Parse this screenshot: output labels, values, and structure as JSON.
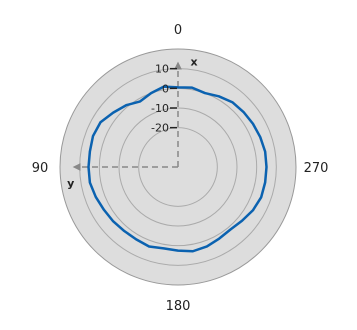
{
  "chart_data": {
    "type": "line",
    "coordinate_system": "polar",
    "title": "",
    "angle_direction": "counterclockwise",
    "zero_angle": "top",
    "angle_ticks": [
      0,
      90,
      180,
      270
    ],
    "angle_tick_labels": [
      "0",
      "90",
      "180",
      "270"
    ],
    "radial_range": [
      -40,
      20
    ],
    "radial_ticks": [
      -20,
      -10,
      0,
      10
    ],
    "radial_tick_labels": [
      "-20",
      "-10",
      "0",
      "10"
    ],
    "grid": true,
    "axis_arrows": [
      {
        "label": "x",
        "angle": 0
      },
      {
        "label": "y",
        "angle": 90
      }
    ],
    "series": [
      {
        "color": "#0b62b0",
        "angles": [
          0,
          10,
          20,
          30,
          40,
          50,
          60,
          70,
          80,
          90,
          100,
          110,
          120,
          130,
          140,
          150,
          160,
          170,
          180,
          190,
          200,
          210,
          220,
          230,
          240,
          250,
          260,
          270,
          280,
          290,
          300,
          310,
          320,
          330,
          340,
          350
        ],
        "values": [
          0.5,
          1.5,
          0.0,
          -1.5,
          1.0,
          3.0,
          5.5,
          6.0,
          5.5,
          5.5,
          5.5,
          4.5,
          3.5,
          3.0,
          2.5,
          2.5,
          3.0,
          2.0,
          2.5,
          3.5,
          3.0,
          2.0,
          1.5,
          2.5,
          4.0,
          5.0,
          5.0,
          5.0,
          5.0,
          4.5,
          4.0,
          3.5,
          3.0,
          1.5,
          0.0,
          1.0
        ]
      }
    ]
  },
  "colors": {
    "outer_ring": "#dddddd",
    "grid": "#aaaaaa",
    "axis_arrow": "#888888"
  }
}
